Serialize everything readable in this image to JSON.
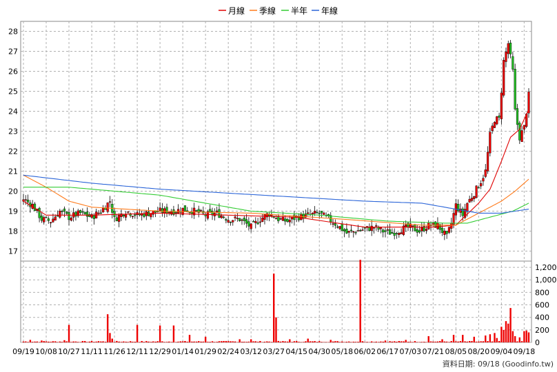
{
  "legend": [
    {
      "label": "月線",
      "color": "#e00000"
    },
    {
      "label": "季線",
      "color": "#ff7a1a"
    },
    {
      "label": "半年",
      "color": "#33cc33"
    },
    {
      "label": "年線",
      "color": "#2a64d8"
    }
  ],
  "footer_note": "資料日期: 09/18 (Goodinfo.tw)",
  "chart_data": {
    "type": "candlestick",
    "price_axis": {
      "ylim": [
        16.5,
        28.5
      ],
      "ticks": [
        17,
        18,
        19,
        20,
        21,
        22,
        23,
        24,
        25,
        26,
        27,
        28
      ],
      "grid": true
    },
    "volume_axis": {
      "ylim": [
        0,
        1300
      ],
      "ticks": [
        0,
        200,
        400,
        600,
        800,
        1000,
        1200
      ],
      "tick_labels": [
        "0",
        "200",
        "400",
        "600",
        "800",
        "1,000",
        "1,200"
      ],
      "grid": true
    },
    "x_ticks": [
      "09/19",
      "10/08",
      "10/27",
      "11/11",
      "11/26",
      "12/11",
      "12/29",
      "01/14",
      "01/29",
      "02/24",
      "03/12",
      "03/27",
      "04/15",
      "04/30",
      "05/18",
      "06/02",
      "06/17",
      "07/03",
      "07/21",
      "08/05",
      "08/20",
      "09/04",
      "09/18"
    ],
    "x_tick_index": [
      0,
      10,
      20,
      30,
      40,
      50,
      60,
      70,
      80,
      90,
      100,
      110,
      120,
      130,
      140,
      150,
      160,
      170,
      180,
      190,
      200,
      210,
      220
    ],
    "n_days": 223,
    "close_keypoints": [
      [
        0,
        19.6
      ],
      [
        4,
        19.3
      ],
      [
        8,
        18.6
      ],
      [
        12,
        18.5
      ],
      [
        16,
        19.0
      ],
      [
        20,
        18.7
      ],
      [
        25,
        18.9
      ],
      [
        30,
        18.7
      ],
      [
        34,
        19.0
      ],
      [
        38,
        19.5
      ],
      [
        40,
        18.6
      ],
      [
        45,
        19.0
      ],
      [
        50,
        18.8
      ],
      [
        55,
        18.9
      ],
      [
        60,
        19.0
      ],
      [
        66,
        19.0
      ],
      [
        70,
        19.1
      ],
      [
        75,
        19.0
      ],
      [
        80,
        18.8
      ],
      [
        85,
        18.9
      ],
      [
        90,
        18.6
      ],
      [
        95,
        18.6
      ],
      [
        100,
        18.2
      ],
      [
        104,
        18.6
      ],
      [
        108,
        18.9
      ],
      [
        112,
        18.6
      ],
      [
        116,
        18.5
      ],
      [
        120,
        18.7
      ],
      [
        125,
        18.8
      ],
      [
        130,
        18.9
      ],
      [
        134,
        18.6
      ],
      [
        138,
        18.3
      ],
      [
        142,
        17.9
      ],
      [
        146,
        18.0
      ],
      [
        150,
        18.1
      ],
      [
        154,
        18.2
      ],
      [
        158,
        18.0
      ],
      [
        162,
        17.9
      ],
      [
        166,
        18.1
      ],
      [
        170,
        18.2
      ],
      [
        174,
        18.0
      ],
      [
        178,
        18.3
      ],
      [
        182,
        18.3
      ],
      [
        186,
        17.7
      ],
      [
        188,
        18.4
      ],
      [
        190,
        19.3
      ],
      [
        193,
        18.8
      ],
      [
        195,
        19.4
      ],
      [
        198,
        19.9
      ],
      [
        201,
        20.5
      ],
      [
        203,
        21.0
      ],
      [
        205,
        22.8
      ],
      [
        207,
        23.6
      ],
      [
        209,
        23.6
      ],
      [
        211,
        26.5
      ],
      [
        213,
        27.4
      ],
      [
        215,
        26.0
      ],
      [
        216,
        24.0
      ],
      [
        218,
        22.7
      ],
      [
        220,
        23.2
      ],
      [
        222,
        24.8
      ]
    ],
    "ma_month_points": [
      [
        0,
        19.5
      ],
      [
        10,
        18.8
      ],
      [
        30,
        18.8
      ],
      [
        60,
        18.9
      ],
      [
        90,
        18.8
      ],
      [
        120,
        18.7
      ],
      [
        150,
        18.2
      ],
      [
        180,
        18.2
      ],
      [
        190,
        18.3
      ],
      [
        200,
        19.4
      ],
      [
        205,
        20.1
      ],
      [
        210,
        21.5
      ],
      [
        214,
        22.7
      ],
      [
        218,
        23.1
      ],
      [
        222,
        24.1
      ]
    ],
    "ma_quarter_points": [
      [
        0,
        20.8
      ],
      [
        10,
        20.2
      ],
      [
        20,
        19.5
      ],
      [
        30,
        19.2
      ],
      [
        60,
        19.0
      ],
      [
        100,
        18.9
      ],
      [
        140,
        18.6
      ],
      [
        175,
        18.3
      ],
      [
        190,
        18.3
      ],
      [
        200,
        18.9
      ],
      [
        210,
        19.5
      ],
      [
        216,
        20.0
      ],
      [
        222,
        20.6
      ]
    ],
    "ma_half_points": [
      [
        0,
        20.2
      ],
      [
        20,
        20.2
      ],
      [
        40,
        20.0
      ],
      [
        60,
        19.8
      ],
      [
        80,
        19.4
      ],
      [
        100,
        19.0
      ],
      [
        130,
        18.8
      ],
      [
        160,
        18.5
      ],
      [
        185,
        18.4
      ],
      [
        195,
        18.4
      ],
      [
        205,
        18.7
      ],
      [
        215,
        19.0
      ],
      [
        222,
        19.4
      ]
    ],
    "ma_year_points": [
      [
        0,
        20.8
      ],
      [
        30,
        20.4
      ],
      [
        60,
        20.1
      ],
      [
        90,
        19.9
      ],
      [
        120,
        19.7
      ],
      [
        150,
        19.5
      ],
      [
        175,
        19.4
      ],
      [
        190,
        19.1
      ],
      [
        200,
        18.9
      ],
      [
        210,
        18.9
      ],
      [
        222,
        19.1
      ]
    ],
    "volume_spikes": [
      [
        3,
        40
      ],
      [
        8,
        30
      ],
      [
        18,
        35
      ],
      [
        20,
        280
      ],
      [
        33,
        20
      ],
      [
        37,
        450
      ],
      [
        38,
        150
      ],
      [
        39,
        60
      ],
      [
        50,
        280
      ],
      [
        60,
        270
      ],
      [
        66,
        270
      ],
      [
        73,
        120
      ],
      [
        80,
        90
      ],
      [
        95,
        50
      ],
      [
        100,
        50
      ],
      [
        110,
        1100
      ],
      [
        111,
        400
      ],
      [
        117,
        50
      ],
      [
        125,
        60
      ],
      [
        135,
        40
      ],
      [
        148,
        1320
      ],
      [
        159,
        30
      ],
      [
        168,
        40
      ],
      [
        178,
        100
      ],
      [
        184,
        50
      ],
      [
        189,
        120
      ],
      [
        193,
        120
      ],
      [
        198,
        90
      ],
      [
        203,
        110
      ],
      [
        205,
        130
      ],
      [
        207,
        150
      ],
      [
        208,
        70
      ],
      [
        210,
        250
      ],
      [
        211,
        200
      ],
      [
        212,
        340
      ],
      [
        213,
        300
      ],
      [
        214,
        550
      ],
      [
        215,
        180
      ],
      [
        216,
        100
      ],
      [
        218,
        80
      ],
      [
        220,
        180
      ],
      [
        221,
        190
      ],
      [
        222,
        160
      ]
    ]
  }
}
